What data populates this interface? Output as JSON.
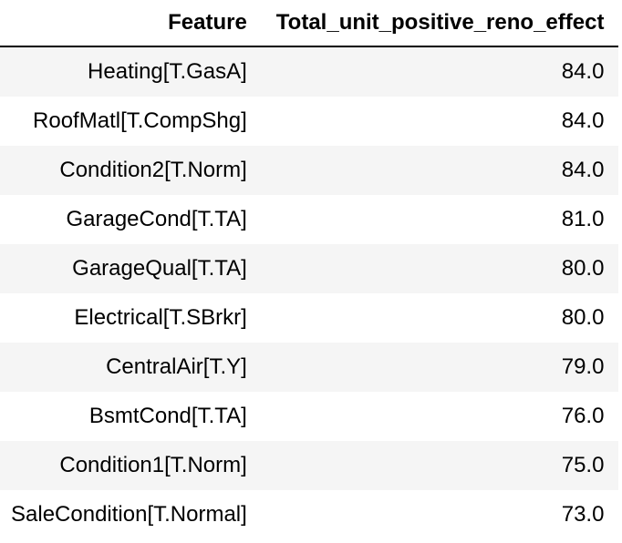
{
  "table": {
    "headers": [
      "Feature",
      "Total_unit_positive_reno_effect"
    ],
    "rows": [
      {
        "feature": "Heating[T.GasA]",
        "value": "84.0"
      },
      {
        "feature": "RoofMatl[T.CompShg]",
        "value": "84.0"
      },
      {
        "feature": "Condition2[T.Norm]",
        "value": "84.0"
      },
      {
        "feature": "GarageCond[T.TA]",
        "value": "81.0"
      },
      {
        "feature": "GarageQual[T.TA]",
        "value": "80.0"
      },
      {
        "feature": "Electrical[T.SBrkr]",
        "value": "80.0"
      },
      {
        "feature": "CentralAir[T.Y]",
        "value": "79.0"
      },
      {
        "feature": "BsmtCond[T.TA]",
        "value": "76.0"
      },
      {
        "feature": "Condition1[T.Norm]",
        "value": "75.0"
      },
      {
        "feature": "SaleCondition[T.Normal]",
        "value": "73.0"
      }
    ]
  }
}
